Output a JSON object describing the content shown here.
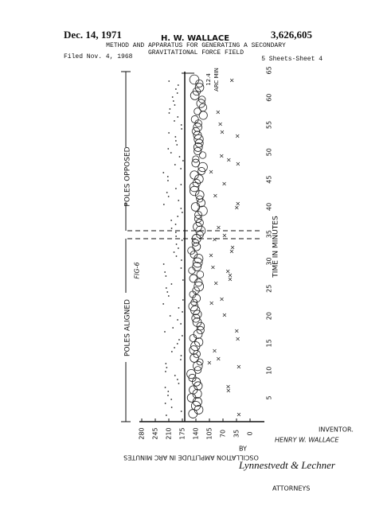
{
  "header": {
    "date": "Dec. 14, 1971",
    "inventor": "H. W. WALLACE",
    "patent_number": "3,626,605",
    "title_line1": "METHOD AND APPARATUS FOR GENERATING A SECONDARY",
    "title_line2": "GRAVITATIONAL FORCE FIELD",
    "filed": "Filed Nov. 4, 1968",
    "sheet": "5 Sheets-Sheet 4"
  },
  "figure": {
    "label": "FIG-6",
    "x_axis_label": "TIME IN MINUTES",
    "y_axis_label": "OSCILLATION AMPLITUDE IN ARC MINUTES",
    "time_ticks": [
      "5",
      "10",
      "15",
      "20",
      "25",
      "30",
      "35",
      "40",
      "45",
      "50",
      "55",
      "60",
      "65"
    ],
    "amplitude_ticks": [
      "280",
      "245",
      "210",
      "175",
      "140",
      "105",
      "70",
      "35",
      "0"
    ],
    "region_aligned": "POLES ALIGNED",
    "region_opposed": "POLES OPPOSED",
    "annotation_value": "12.4",
    "annotation_unit": "ARC MIN"
  },
  "footer": {
    "inventor_heading": "INVENTOR.",
    "inventor_name": "HENRY W. WALLACE",
    "by": "BY",
    "signature": "Lynnestvedt & Lechner",
    "attorneys": "ATTORNEYS"
  }
}
